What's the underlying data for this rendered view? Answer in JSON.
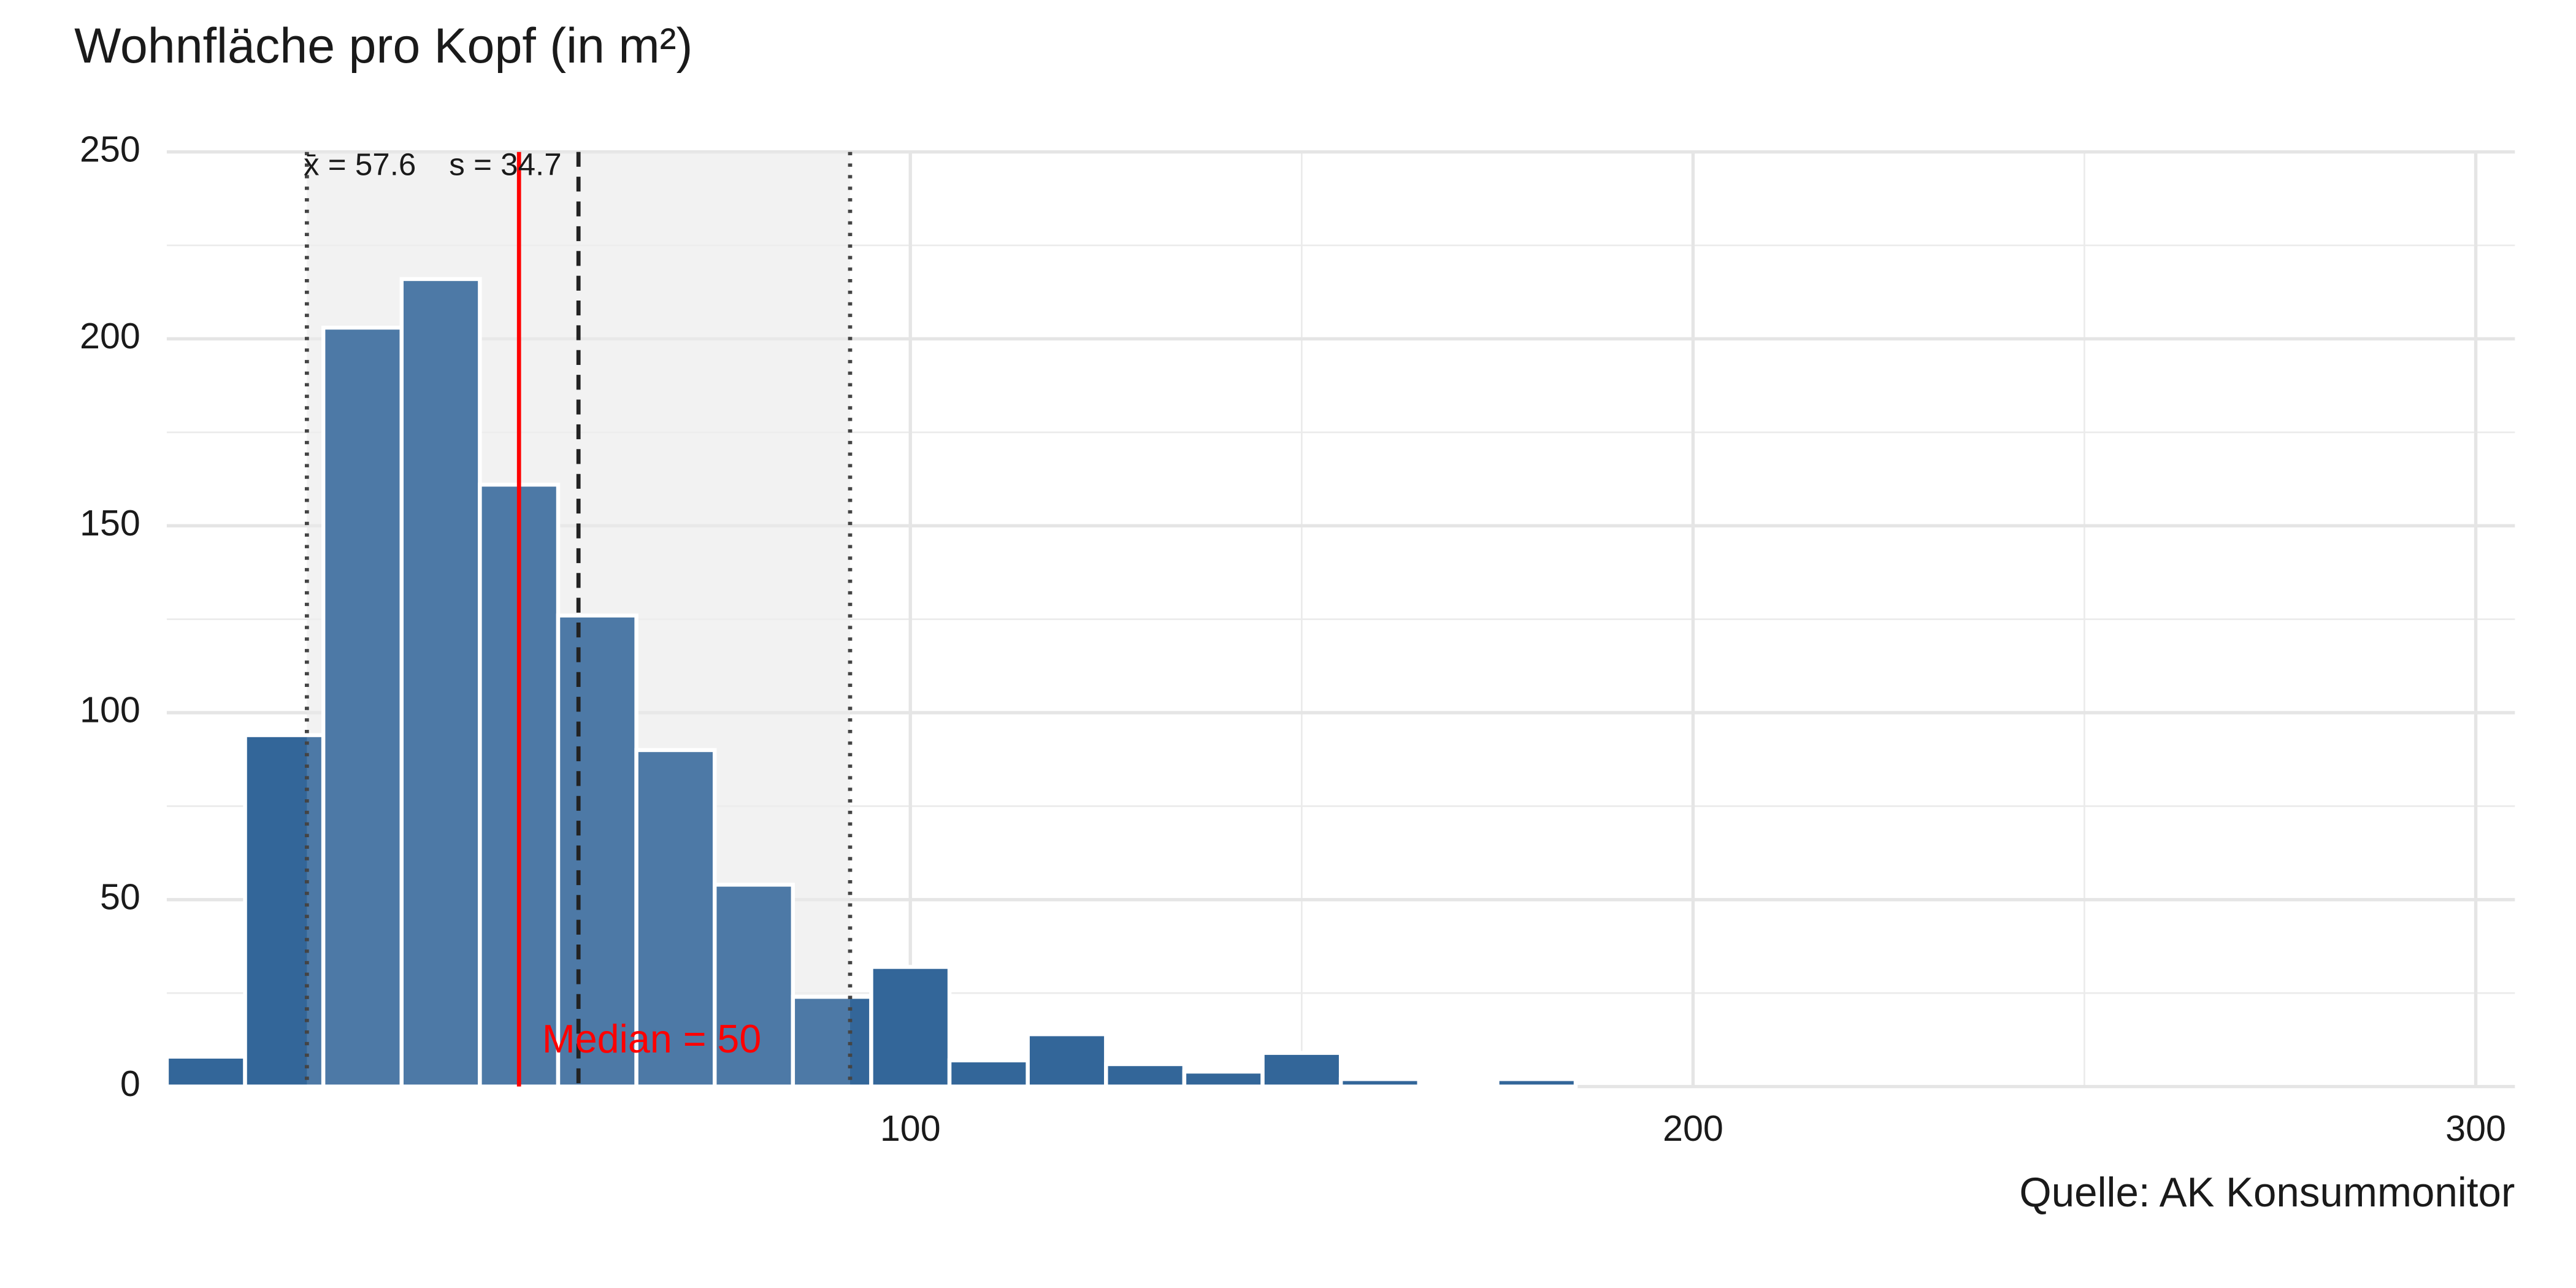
{
  "chart_data": {
    "type": "histogram",
    "title": "Wohnfläche pro Kopf (in m²)",
    "caption": "Quelle: AK Konsummonitor",
    "bins": [
      5,
      15,
      25,
      35,
      45,
      55,
      65,
      75,
      85,
      95,
      105,
      115,
      125,
      135,
      145,
      155,
      165,
      175,
      185
    ],
    "counts": [
      8,
      94,
      203,
      216,
      161,
      126,
      90,
      54,
      24,
      32,
      7,
      14,
      6,
      4,
      9,
      2,
      1,
      2
    ],
    "color": "#336699",
    "xlim": [
      5,
      305
    ],
    "xticks": [
      100,
      200,
      300
    ],
    "xminor": [
      50,
      150,
      250
    ],
    "ylim": [
      0,
      250
    ],
    "yticks": [
      0,
      50,
      100,
      150,
      200,
      250
    ],
    "yminor": [
      25,
      75,
      125,
      175,
      225
    ],
    "grid": true,
    "mean": 57.6,
    "sd": 34.7,
    "median": 50,
    "mean_label": "x̄ = 57.6",
    "sd_label": "s = 34.7",
    "median_label": "Median = 50",
    "median_color": "#ff0000"
  }
}
